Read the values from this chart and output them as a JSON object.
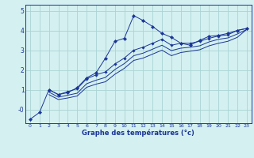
{
  "bg_color": "#d4f0f0",
  "grid_color": "#aad4d4",
  "line_color": "#1a3498",
  "xlabel": "Graphe des températures (°c)",
  "xlim": [
    -0.5,
    23.5
  ],
  "ylim": [
    -0.7,
    5.3
  ],
  "yticks": [
    0,
    1,
    2,
    3,
    4,
    5
  ],
  "ytick_labels": [
    "-0",
    "1",
    "2",
    "3",
    "4",
    "5"
  ],
  "xticks": [
    0,
    1,
    2,
    3,
    4,
    5,
    6,
    7,
    8,
    9,
    10,
    11,
    12,
    13,
    14,
    15,
    16,
    17,
    18,
    19,
    20,
    21,
    22,
    23
  ],
  "series1_x": [
    0,
    1,
    2,
    3,
    4,
    5,
    6,
    7,
    8,
    9,
    10,
    11,
    12,
    13,
    14,
    15,
    16,
    17,
    18,
    19,
    20,
    21,
    22,
    23
  ],
  "series1_y": [
    -0.5,
    -0.15,
    1.0,
    0.75,
    0.85,
    1.1,
    1.6,
    1.85,
    2.6,
    3.45,
    3.6,
    4.75,
    4.5,
    4.2,
    3.85,
    3.65,
    3.35,
    3.25,
    3.5,
    3.7,
    3.75,
    3.85,
    4.0,
    4.1
  ],
  "series2_x": [
    2,
    3,
    4,
    5,
    6,
    7,
    8,
    9,
    10,
    11,
    12,
    13,
    14,
    15,
    16,
    17,
    18,
    19,
    20,
    21,
    22,
    23
  ],
  "series2_y": [
    1.0,
    0.75,
    0.9,
    1.05,
    1.55,
    1.75,
    1.9,
    2.3,
    2.6,
    3.0,
    3.15,
    3.35,
    3.55,
    3.25,
    3.35,
    3.35,
    3.45,
    3.6,
    3.72,
    3.78,
    4.0,
    4.1
  ],
  "series3_x": [
    2,
    3,
    4,
    5,
    6,
    7,
    8,
    9,
    10,
    11,
    12,
    13,
    14,
    15,
    16,
    17,
    18,
    19,
    20,
    21,
    22,
    23
  ],
  "series3_y": [
    0.88,
    0.62,
    0.72,
    0.82,
    1.3,
    1.48,
    1.62,
    2.02,
    2.32,
    2.72,
    2.85,
    3.05,
    3.25,
    2.98,
    3.1,
    3.15,
    3.22,
    3.42,
    3.55,
    3.62,
    3.82,
    4.05
  ],
  "series4_x": [
    2,
    3,
    4,
    5,
    6,
    7,
    8,
    9,
    10,
    11,
    12,
    13,
    14,
    15,
    16,
    17,
    18,
    19,
    20,
    21,
    22,
    23
  ],
  "series4_y": [
    0.75,
    0.5,
    0.58,
    0.68,
    1.12,
    1.28,
    1.4,
    1.78,
    2.08,
    2.48,
    2.6,
    2.8,
    3.0,
    2.72,
    2.88,
    2.95,
    3.02,
    3.22,
    3.35,
    3.45,
    3.65,
    4.05
  ]
}
